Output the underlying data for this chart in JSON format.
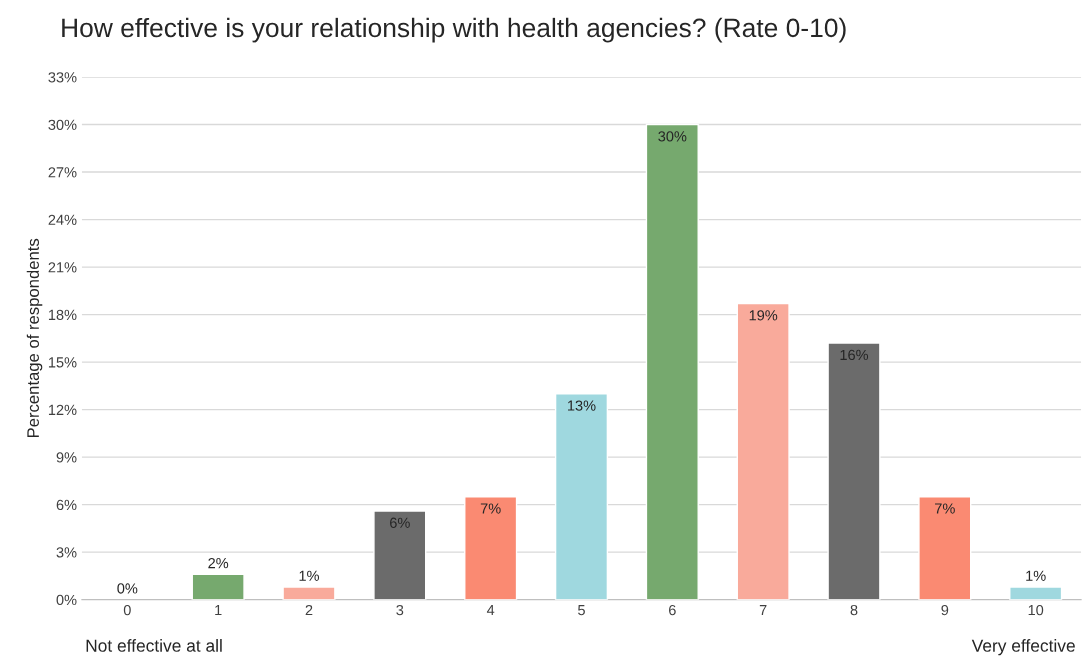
{
  "chart_data": {
    "type": "bar",
    "title": "How effective is your relationship with health agencies? (Rate 0-10)",
    "ylabel": "Percentage of respondents",
    "categories": [
      "0",
      "1",
      "2",
      "3",
      "4",
      "5",
      "6",
      "7",
      "8",
      "9",
      "10"
    ],
    "values": [
      0,
      1.6,
      0.8,
      5.6,
      6.5,
      13.0,
      30.0,
      18.7,
      16.2,
      6.5,
      0.8
    ],
    "colors": [
      "#76a96e",
      "#76a96e",
      "#f9aa9b",
      "#6b6b6b",
      "#fa8a72",
      "#9fd8df",
      "#76a96e",
      "#f9aa9b",
      "#6b6b6b",
      "#fa8a72",
      "#9fd8df"
    ],
    "value_labels": [
      "0%",
      "2%",
      "1%",
      "6%",
      "7%",
      "13%",
      "30%",
      "19%",
      "16%",
      "7%",
      "1%"
    ],
    "ylim": [
      0,
      33
    ],
    "yticks": [
      {
        "value": 0,
        "label": "0%"
      },
      {
        "value": 3,
        "label": "3%"
      },
      {
        "value": 6,
        "label": "6%"
      },
      {
        "value": 9,
        "label": "9%"
      },
      {
        "value": 12,
        "label": "12%"
      },
      {
        "value": 15,
        "label": "15%"
      },
      {
        "value": 18,
        "label": "18%"
      },
      {
        "value": 21,
        "label": "21%"
      },
      {
        "value": 24,
        "label": "24%"
      },
      {
        "value": 27,
        "label": "27%"
      },
      {
        "value": 30,
        "label": "30%"
      },
      {
        "value": 33,
        "label": "33%"
      }
    ],
    "grid": "y",
    "annotations": [
      "Not effective at all",
      "Very effective"
    ]
  }
}
